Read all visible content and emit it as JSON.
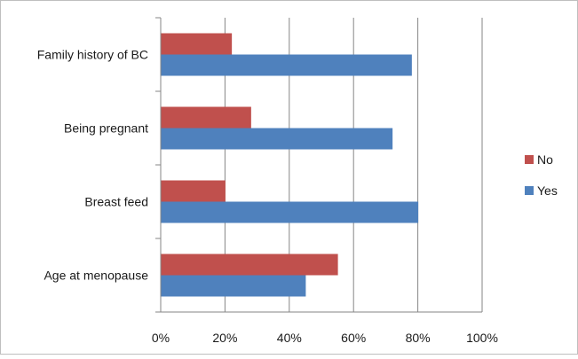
{
  "chart_data": {
    "type": "bar",
    "orientation": "horizontal",
    "categories": [
      "Family history of BC",
      "Being pregnant",
      "Breast feed",
      "Age at menopause"
    ],
    "series": [
      {
        "name": "No",
        "values": [
          22,
          28,
          20,
          55
        ],
        "color": "#c0504d"
      },
      {
        "name": "Yes",
        "values": [
          78,
          72,
          80,
          45
        ],
        "color": "#4f81bd"
      }
    ],
    "xlim": [
      0,
      100
    ],
    "x_ticks": [
      0,
      20,
      40,
      60,
      80,
      100
    ],
    "x_tick_labels": [
      "0%",
      "20%",
      "40%",
      "60%",
      "80%",
      "100%"
    ],
    "grid": "vertical",
    "legend": "right"
  }
}
